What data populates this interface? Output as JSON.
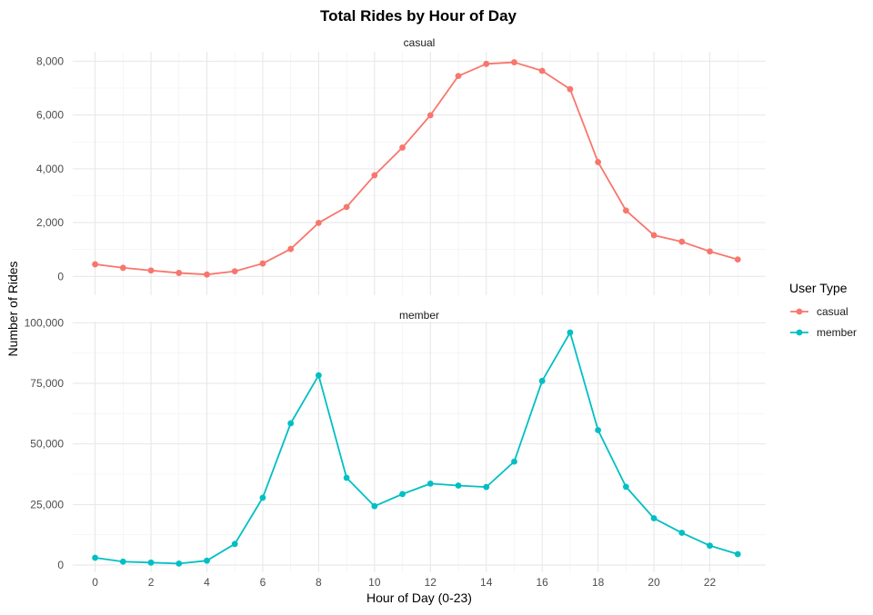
{
  "chart_data": {
    "type": "line",
    "title": "Total Rides by Hour of Day",
    "xlabel": "Hour of Day (0-23)",
    "ylabel": "Number of Rides",
    "x": [
      0,
      1,
      2,
      3,
      4,
      5,
      6,
      7,
      8,
      9,
      10,
      11,
      12,
      13,
      14,
      15,
      16,
      17,
      18,
      19,
      20,
      21,
      22,
      23
    ],
    "x_ticks": [
      0,
      2,
      4,
      6,
      8,
      10,
      12,
      14,
      16,
      18,
      20,
      22
    ],
    "xlim": [
      -0.8,
      24.0
    ],
    "grid": true,
    "legend": {
      "title": "User Type",
      "placement": "right",
      "entries": [
        "casual",
        "member"
      ]
    },
    "series": [
      {
        "name": "casual",
        "color": "#F8766D",
        "values": [
          450,
          320,
          220,
          130,
          70,
          190,
          480,
          1020,
          1990,
          2580,
          3760,
          4790,
          5990,
          7450,
          7900,
          7960,
          7640,
          6960,
          4250,
          2450,
          1530,
          1290,
          930,
          630
        ]
      },
      {
        "name": "member",
        "color": "#00BFC4",
        "values": [
          3000,
          1400,
          1000,
          600,
          1800,
          8700,
          27800,
          58500,
          78300,
          36000,
          24300,
          29300,
          33600,
          32800,
          32200,
          42700,
          76000,
          96000,
          55700,
          32300,
          19300,
          13300,
          8000,
          4500
        ]
      }
    ],
    "panels": [
      {
        "strip": "casual",
        "series_index": 0,
        "ylim": [
          -700,
          8350
        ],
        "y_ticks": [
          0,
          2000,
          4000,
          6000,
          8000
        ],
        "y_tick_labels": [
          "0",
          "2,000",
          "4,000",
          "6,000",
          "8,000"
        ]
      },
      {
        "strip": "member",
        "series_index": 1,
        "ylim": [
          -3000,
          100500
        ],
        "y_ticks": [
          0,
          25000,
          50000,
          75000,
          100000
        ],
        "y_tick_labels": [
          "0",
          "25,000",
          "50,000",
          "75,000",
          "100,000"
        ]
      }
    ]
  }
}
